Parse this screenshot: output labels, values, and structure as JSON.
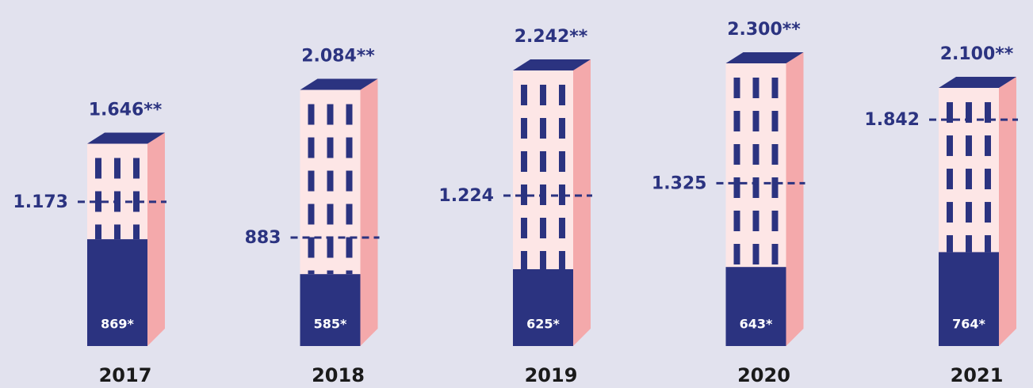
{
  "chart_data": {
    "type": "bar",
    "categories": [
      "2017",
      "2018",
      "2019",
      "2020",
      "2021"
    ],
    "series": [
      {
        "style": "building",
        "color": "#fde6e6",
        "values": [
          1646,
          2084,
          2242,
          2300,
          2100
        ],
        "value_labels": [
          "1.646**",
          "2.084**",
          "2.242**",
          "2.300**",
          "2.100**"
        ]
      },
      {
        "style": "base",
        "color": "#2b3380",
        "values": [
          869,
          585,
          625,
          643,
          764
        ],
        "value_labels": [
          "869*",
          "585*",
          "625*",
          "643*",
          "764*"
        ]
      },
      {
        "style": "dashed",
        "color": "#2b3380",
        "values": [
          1173,
          883,
          1224,
          1325,
          1842
        ],
        "value_labels": [
          "1.173",
          "883",
          "1.224",
          "1.325",
          "1.842"
        ]
      }
    ],
    "ylim": [
      0,
      2300
    ]
  }
}
